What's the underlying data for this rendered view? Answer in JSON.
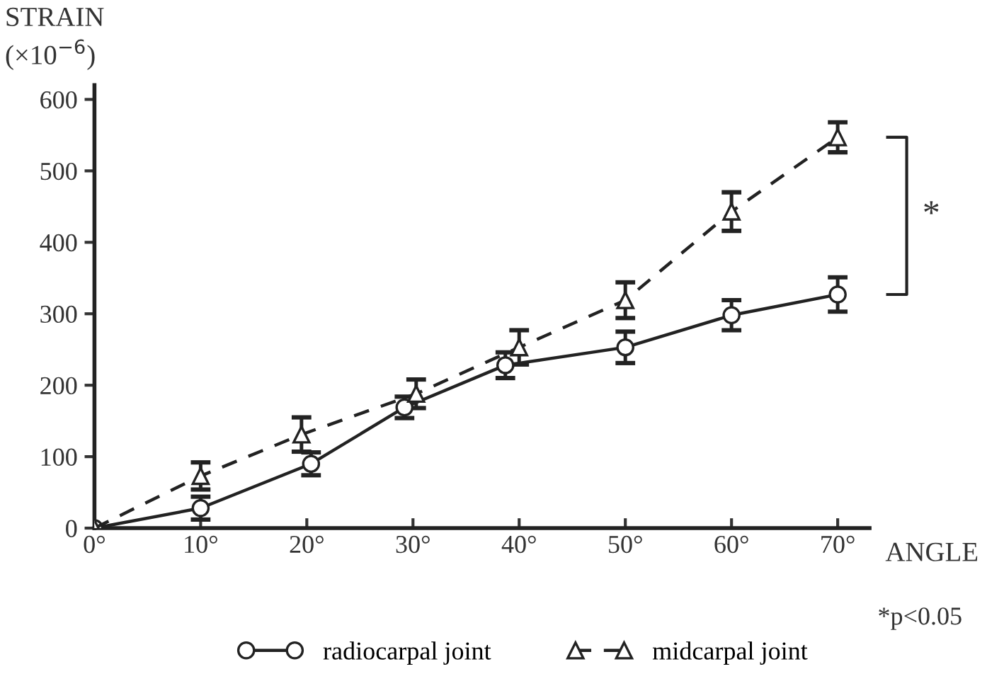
{
  "chart_data": {
    "type": "line",
    "ylabel": "STRAIN\n(×10$^{−6}$)",
    "xlabel": "ANGLE",
    "xlim": [
      0,
      73
    ],
    "ylim": [
      0,
      620
    ],
    "xticks": [
      {
        "value": 0,
        "label": "0°"
      },
      {
        "value": 10,
        "label": "10°"
      },
      {
        "value": 20,
        "label": "20°"
      },
      {
        "value": 30,
        "label": "30°"
      },
      {
        "value": 40,
        "label": "40°"
      },
      {
        "value": 50,
        "label": "50°"
      },
      {
        "value": 60,
        "label": "60°"
      },
      {
        "value": 70,
        "label": "70°"
      }
    ],
    "yticks": [
      0,
      100,
      200,
      300,
      400,
      500,
      600
    ],
    "grid": false,
    "legend": "bottom",
    "series": [
      {
        "name": "radiocarpal joint",
        "color": "#222222",
        "marker": "circle",
        "line_style": "solid",
        "x": [
          0,
          10,
          20.4,
          29.2,
          38.7,
          50,
          60,
          70
        ],
        "values": [
          0,
          28,
          90,
          169,
          228,
          253,
          298,
          327
        ],
        "errors": [
          null,
          16,
          16,
          15,
          18,
          22,
          21,
          24
        ]
      },
      {
        "name": "midcarpal joint",
        "color": "#222222",
        "marker": "triangle",
        "line_style": "dashed",
        "x": [
          0,
          10,
          19.5,
          30.3,
          40,
          50,
          60,
          70
        ],
        "values": [
          0,
          73,
          131,
          188,
          253,
          319,
          443,
          547
        ],
        "errors": [
          null,
          19,
          24,
          20,
          24,
          25,
          27,
          21
        ]
      }
    ],
    "annotations": [
      "*",
      "*p<0.05"
    ]
  }
}
